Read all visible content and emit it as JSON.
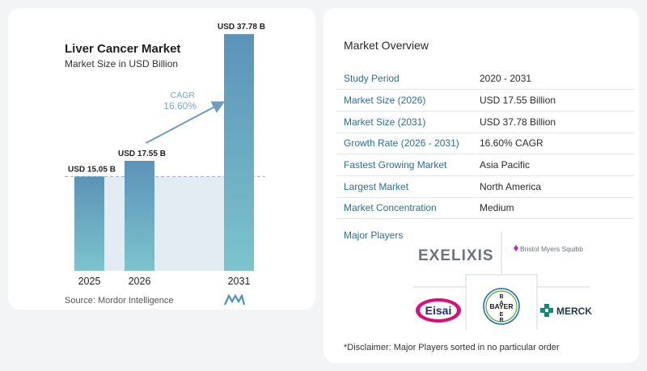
{
  "chart_data": {
    "type": "bar",
    "title": "Liver Cancer Market",
    "subtitle": "Market Size in USD Billion",
    "categories": [
      "2025",
      "2026",
      "2031"
    ],
    "values": [
      15.05,
      17.55,
      37.78
    ],
    "value_labels": [
      "USD 15.05 B",
      "USD 17.55 B",
      "USD 37.78 B"
    ],
    "ylim": [
      0,
      40
    ],
    "grid": false,
    "cagr_label": "CAGR",
    "cagr_value": "16.60%",
    "colors": {
      "bar_top": "#5b93b8",
      "bar_bottom": "#7cc4cd",
      "shade": "#e3ebf3",
      "arrow": "#6a9dc0",
      "cagr_text": "#7ba7c8"
    }
  },
  "source": "Source:  Mordor Intelligence",
  "overview": {
    "title": "Market Overview",
    "rows": [
      {
        "key": "Study Period",
        "value": "2020 - 2031"
      },
      {
        "key": "Market Size (2026)",
        "value": "USD 17.55 Billion"
      },
      {
        "key": "Market Size (2031)",
        "value": "USD 37.78 Billion"
      },
      {
        "key": "Growth Rate (2026 - 2031)",
        "value": "16.60% CAGR"
      },
      {
        "key": "Fastest Growing Market",
        "value": "Asia Pacific"
      },
      {
        "key": "Largest Market",
        "value": "North America"
      },
      {
        "key": "Market Concentration",
        "value": "Medium"
      }
    ]
  },
  "players": {
    "label": "Major Players",
    "logos": [
      "EXELIXIS",
      "Bristol Myers Squibb",
      "Eisai",
      "BAYER",
      "MERCK"
    ]
  },
  "disclaimer": "*Disclaimer: Major Players sorted in no particular order"
}
